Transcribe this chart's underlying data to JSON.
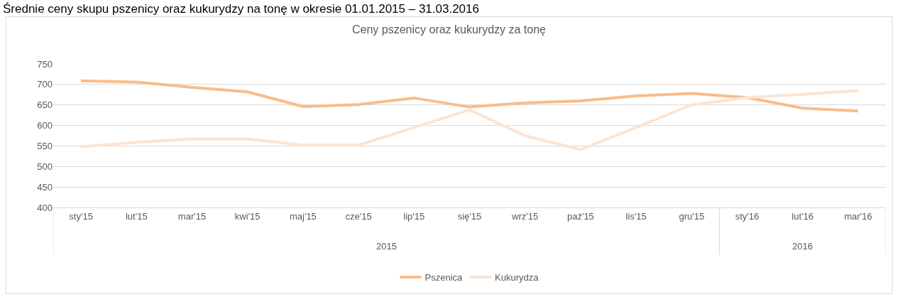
{
  "chart_data": {
    "type": "line",
    "title": "Ceny pszenicy oraz kukurydzy za tonę",
    "categories": [
      "sty'15",
      "lut'15",
      "mar'15",
      "kwi'15",
      "maj'15",
      "cze'15",
      "lip'15",
      "się'15",
      "wrz'15",
      "paź'15",
      "lis'15",
      "gru'15",
      "sty'16",
      "lut'16",
      "mar'16"
    ],
    "series": [
      {
        "name": "Pszenica",
        "color": "#f8bd8b",
        "values": [
          709,
          706,
          693,
          682,
          646,
          651,
          667,
          645,
          655,
          660,
          672,
          678,
          668,
          642,
          635
        ]
      },
      {
        "name": "Kukurydza",
        "color": "#fce4d3",
        "values": [
          548,
          559,
          567,
          567,
          552,
          552,
          595,
          638,
          575,
          541,
          595,
          650,
          668,
          676,
          685
        ]
      }
    ],
    "ylim": [
      400,
      750
    ],
    "yticks": [
      400,
      450,
      500,
      550,
      600,
      650,
      700,
      750
    ],
    "grid": "y",
    "legend": "bottom",
    "marker": "none",
    "line_style": "solid",
    "annotations": [
      "Średnie ceny skupu pszenicy oraz kukurydzy na tonę w okresie 01.01.2015 – 31.03.2016",
      "2015",
      "2016"
    ]
  }
}
